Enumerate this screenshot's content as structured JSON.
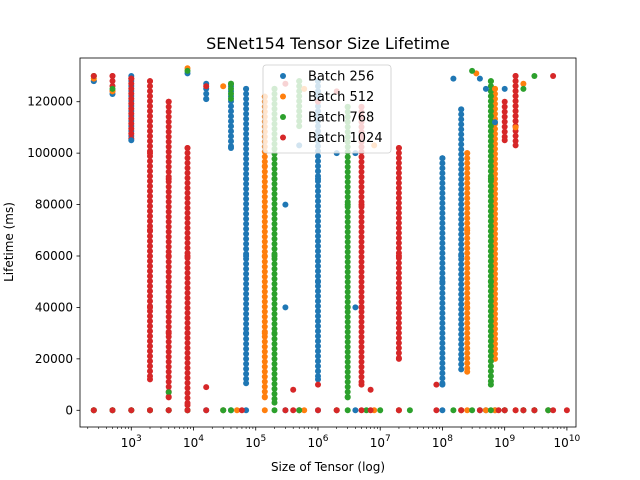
{
  "chart_data": {
    "type": "scatter",
    "title": "SENet154 Tensor Size Lifetime",
    "xlabel": "Size of Tensor (log)",
    "ylabel": "Lifetime (ms)",
    "xscale": "log",
    "xlim": [
      150,
      14000000000
    ],
    "ylim": [
      -6500,
      137000
    ],
    "x_ticks": [
      {
        "value": 1000,
        "base": "10",
        "exp": "3"
      },
      {
        "value": 10000,
        "base": "10",
        "exp": "4"
      },
      {
        "value": 100000,
        "base": "10",
        "exp": "5"
      },
      {
        "value": 1000000,
        "base": "10",
        "exp": "6"
      },
      {
        "value": 10000000,
        "base": "10",
        "exp": "7"
      },
      {
        "value": 100000000,
        "base": "10",
        "exp": "8"
      },
      {
        "value": 1000000000,
        "base": "10",
        "exp": "9"
      },
      {
        "value": 10000000000,
        "base": "10",
        "exp": "10"
      }
    ],
    "y_ticks": [
      {
        "value": 0,
        "label": "0"
      },
      {
        "value": 20000,
        "label": "20000"
      },
      {
        "value": 40000,
        "label": "40000"
      },
      {
        "value": 60000,
        "label": "60000"
      },
      {
        "value": 80000,
        "label": "80000"
      },
      {
        "value": 100000,
        "label": "100000"
      },
      {
        "value": 120000,
        "label": "120000"
      }
    ],
    "grid": false,
    "legend_position": "top-center",
    "series": [
      {
        "name": "Batch 256",
        "color": "#1f77b4",
        "points": [
          [
            250,
            0
          ],
          [
            250,
            128000
          ],
          [
            500,
            0
          ],
          [
            500,
            123000
          ],
          [
            1000,
            0
          ],
          [
            1000,
            105000
          ],
          [
            2000,
            0
          ],
          [
            4000,
            0
          ],
          [
            8000,
            0
          ],
          [
            8000,
            131000
          ],
          [
            16000,
            0
          ],
          [
            16000,
            121000
          ],
          [
            30000,
            0
          ],
          [
            40000,
            0
          ],
          [
            40000,
            102000
          ],
          [
            70000,
            0
          ],
          [
            70000,
            10500
          ],
          [
            70000,
            30000
          ],
          [
            70000,
            60000
          ],
          [
            70000,
            90000
          ],
          [
            70000,
            125000
          ],
          [
            300000,
            0
          ],
          [
            300000,
            40000
          ],
          [
            300000,
            80000
          ],
          [
            500000,
            0
          ],
          [
            500000,
            103000
          ],
          [
            1000000,
            0
          ],
          [
            1000000,
            12000
          ],
          [
            1000000,
            50000
          ],
          [
            1000000,
            90000
          ],
          [
            1000000,
            128000
          ],
          [
            2000000,
            0
          ],
          [
            2000000,
            100000
          ],
          [
            4000000,
            0
          ],
          [
            4000000,
            40000
          ],
          [
            4000000,
            100000
          ],
          [
            20000000,
            0
          ],
          [
            100000000,
            0
          ],
          [
            100000000,
            10000
          ],
          [
            100000000,
            50000
          ],
          [
            100000000,
            98000
          ],
          [
            150000000,
            129000
          ],
          [
            200000000,
            0
          ],
          [
            200000000,
            20000
          ],
          [
            200000000,
            60000
          ],
          [
            200000000,
            117000
          ],
          [
            400000000,
            0
          ],
          [
            400000000,
            129000
          ],
          [
            500000000,
            0
          ],
          [
            500000000,
            125000
          ],
          [
            700000000,
            0
          ],
          [
            700000000,
            112000
          ],
          [
            1000000000,
            0
          ],
          [
            1000000000,
            125000
          ],
          [
            2000000000,
            0
          ],
          [
            3000000000,
            0
          ],
          [
            5000000000,
            0
          ]
        ]
      },
      {
        "name": "Batch 512",
        "color": "#ff7f0e",
        "points": [
          [
            250,
            0
          ],
          [
            250,
            129000
          ],
          [
            500,
            0
          ],
          [
            500,
            124000
          ],
          [
            1000,
            0
          ],
          [
            2000,
            0
          ],
          [
            4000,
            0
          ],
          [
            8000,
            0
          ],
          [
            8000,
            133000
          ],
          [
            30000,
            0
          ],
          [
            30000,
            126000
          ],
          [
            50000,
            0
          ],
          [
            140000,
            0
          ],
          [
            140000,
            5000
          ],
          [
            140000,
            30000
          ],
          [
            140000,
            60000
          ],
          [
            140000,
            95000
          ],
          [
            140000,
            122000
          ],
          [
            500000,
            0
          ],
          [
            600000,
            0
          ],
          [
            600000,
            125000
          ],
          [
            2000000,
            0
          ],
          [
            8000000,
            0
          ],
          [
            8000000,
            103000
          ],
          [
            20000000,
            0
          ],
          [
            200000000,
            0
          ],
          [
            250000000,
            0
          ],
          [
            250000000,
            15000
          ],
          [
            250000000,
            40000
          ],
          [
            250000000,
            70000
          ],
          [
            250000000,
            100000
          ],
          [
            350000000,
            131000
          ],
          [
            500000000,
            0
          ],
          [
            700000000,
            0
          ],
          [
            700000000,
            125000
          ],
          [
            1000000000,
            0
          ],
          [
            1500000000,
            0
          ],
          [
            1500000000,
            110000
          ],
          [
            2000000000,
            0
          ],
          [
            2000000000,
            127000
          ],
          [
            3000000000,
            0
          ],
          [
            5000000000,
            0
          ]
        ]
      },
      {
        "name": "Batch 768",
        "color": "#2ca02c",
        "points": [
          [
            250,
            0
          ],
          [
            250,
            130000
          ],
          [
            500,
            0
          ],
          [
            500,
            125000
          ],
          [
            1000,
            0
          ],
          [
            2000,
            0
          ],
          [
            4000,
            0
          ],
          [
            4000,
            7000
          ],
          [
            8000,
            0
          ],
          [
            8000,
            132000
          ],
          [
            30000,
            0
          ],
          [
            40000,
            0
          ],
          [
            40000,
            127000
          ],
          [
            200000,
            0
          ],
          [
            200000,
            3000
          ],
          [
            200000,
            30000
          ],
          [
            200000,
            60000
          ],
          [
            200000,
            90000
          ],
          [
            200000,
            125000
          ],
          [
            500000,
            0
          ],
          [
            500000,
            128000
          ],
          [
            3000000,
            0
          ],
          [
            3000000,
            5000
          ],
          [
            3000000,
            40000
          ],
          [
            3000000,
            80000
          ],
          [
            3000000,
            118000
          ],
          [
            6000000,
            0
          ],
          [
            10000000,
            0
          ],
          [
            30000000,
            0
          ],
          [
            150000000,
            0
          ],
          [
            300000000,
            0
          ],
          [
            300000000,
            132000
          ],
          [
            600000000,
            0
          ],
          [
            600000000,
            10000
          ],
          [
            600000000,
            50000
          ],
          [
            600000000,
            90000
          ],
          [
            600000000,
            128000
          ],
          [
            1000000000,
            0
          ],
          [
            2000000000,
            0
          ],
          [
            2000000000,
            125000
          ],
          [
            3000000000,
            0
          ],
          [
            3000000000,
            130000
          ],
          [
            5000000000,
            0
          ]
        ]
      },
      {
        "name": "Batch 1024",
        "color": "#d62728",
        "points": [
          [
            250,
            0
          ],
          [
            250,
            130000
          ],
          [
            500,
            0
          ],
          [
            500,
            130000
          ],
          [
            1000,
            0
          ],
          [
            1000,
            129000
          ],
          [
            2000,
            0
          ],
          [
            2000,
            12000
          ],
          [
            2000,
            40000
          ],
          [
            2000,
            70000
          ],
          [
            2000,
            100000
          ],
          [
            2000,
            128000
          ],
          [
            4000,
            0
          ],
          [
            4000,
            5000
          ],
          [
            4000,
            30000
          ],
          [
            4000,
            60000
          ],
          [
            4000,
            90000
          ],
          [
            4000,
            120000
          ],
          [
            8000,
            0
          ],
          [
            8000,
            2000
          ],
          [
            8000,
            30000
          ],
          [
            8000,
            60000
          ],
          [
            8000,
            102000
          ],
          [
            16000,
            0
          ],
          [
            16000,
            9000
          ],
          [
            16000,
            126000
          ],
          [
            60000,
            0
          ],
          [
            300000,
            0
          ],
          [
            300000,
            127000
          ],
          [
            400000,
            0
          ],
          [
            400000,
            8000
          ],
          [
            1000000,
            0
          ],
          [
            1000000,
            10000
          ],
          [
            1000000,
            120000
          ],
          [
            2000000,
            0
          ],
          [
            2000000,
            124000
          ],
          [
            5000000,
            0
          ],
          [
            5000000,
            10000
          ],
          [
            5000000,
            40000
          ],
          [
            5000000,
            80000
          ],
          [
            5000000,
            118000
          ],
          [
            7000000,
            0
          ],
          [
            7000000,
            8000
          ],
          [
            20000000,
            0
          ],
          [
            20000000,
            20000
          ],
          [
            20000000,
            60000
          ],
          [
            20000000,
            102000
          ],
          [
            80000000,
            0
          ],
          [
            80000000,
            10000
          ],
          [
            200000000,
            0
          ],
          [
            400000000,
            0
          ],
          [
            800000000,
            0
          ],
          [
            1000000000,
            0
          ],
          [
            1000000000,
            105000
          ],
          [
            1500000000,
            0
          ],
          [
            1500000000,
            103000
          ],
          [
            1500000000,
            130000
          ],
          [
            2000000000,
            0
          ],
          [
            3000000000,
            0
          ],
          [
            6000000000,
            0
          ],
          [
            6000000000,
            130000
          ],
          [
            10000000000,
            0
          ]
        ]
      }
    ],
    "bands": [
      {
        "series": 0,
        "x": 70000,
        "y0": 10500,
        "y1": 125000
      },
      {
        "series": 0,
        "x": 1000000,
        "y0": 12000,
        "y1": 128000
      },
      {
        "series": 0,
        "x": 100000000,
        "y0": 10000,
        "y1": 98000
      },
      {
        "series": 0,
        "x": 200000000,
        "y0": 15000,
        "y1": 117000
      },
      {
        "series": 0,
        "x": 16000,
        "y0": 121000,
        "y1": 127000
      },
      {
        "series": 0,
        "x": 40000,
        "y0": 102000,
        "y1": 126000
      },
      {
        "series": 0,
        "x": 1000,
        "y0": 105000,
        "y1": 130000
      },
      {
        "series": 1,
        "x": 140000,
        "y0": 5000,
        "y1": 122000
      },
      {
        "series": 1,
        "x": 250000000,
        "y0": 15000,
        "y1": 100000
      },
      {
        "series": 1,
        "x": 700000000,
        "y0": 20000,
        "y1": 125000
      },
      {
        "series": 1,
        "x": 1500000000,
        "y0": 110000,
        "y1": 128000
      },
      {
        "series": 2,
        "x": 200000,
        "y0": 3000,
        "y1": 125000
      },
      {
        "series": 2,
        "x": 3000000,
        "y0": 5000,
        "y1": 118000
      },
      {
        "series": 2,
        "x": 600000000,
        "y0": 10000,
        "y1": 128000
      },
      {
        "series": 2,
        "x": 40000,
        "y0": 120000,
        "y1": 127000
      },
      {
        "series": 2,
        "x": 500000,
        "y0": 110000,
        "y1": 128000
      },
      {
        "series": 3,
        "x": 2000,
        "y0": 12000,
        "y1": 128000
      },
      {
        "series": 3,
        "x": 4000,
        "y0": 5000,
        "y1": 120000
      },
      {
        "series": 3,
        "x": 8000,
        "y0": 2000,
        "y1": 102000
      },
      {
        "series": 3,
        "x": 5000000,
        "y0": 10000,
        "y1": 118000
      },
      {
        "series": 3,
        "x": 20000000,
        "y0": 20000,
        "y1": 102000
      },
      {
        "series": 3,
        "x": 1000,
        "y0": 105000,
        "y1": 129000
      },
      {
        "series": 3,
        "x": 500,
        "y0": 123000,
        "y1": 130000
      },
      {
        "series": 3,
        "x": 250,
        "y0": 127000,
        "y1": 130000
      },
      {
        "series": 3,
        "x": 1000000000,
        "y0": 105000,
        "y1": 120000
      },
      {
        "series": 3,
        "x": 1500000000,
        "y0": 103000,
        "y1": 130000
      }
    ]
  }
}
